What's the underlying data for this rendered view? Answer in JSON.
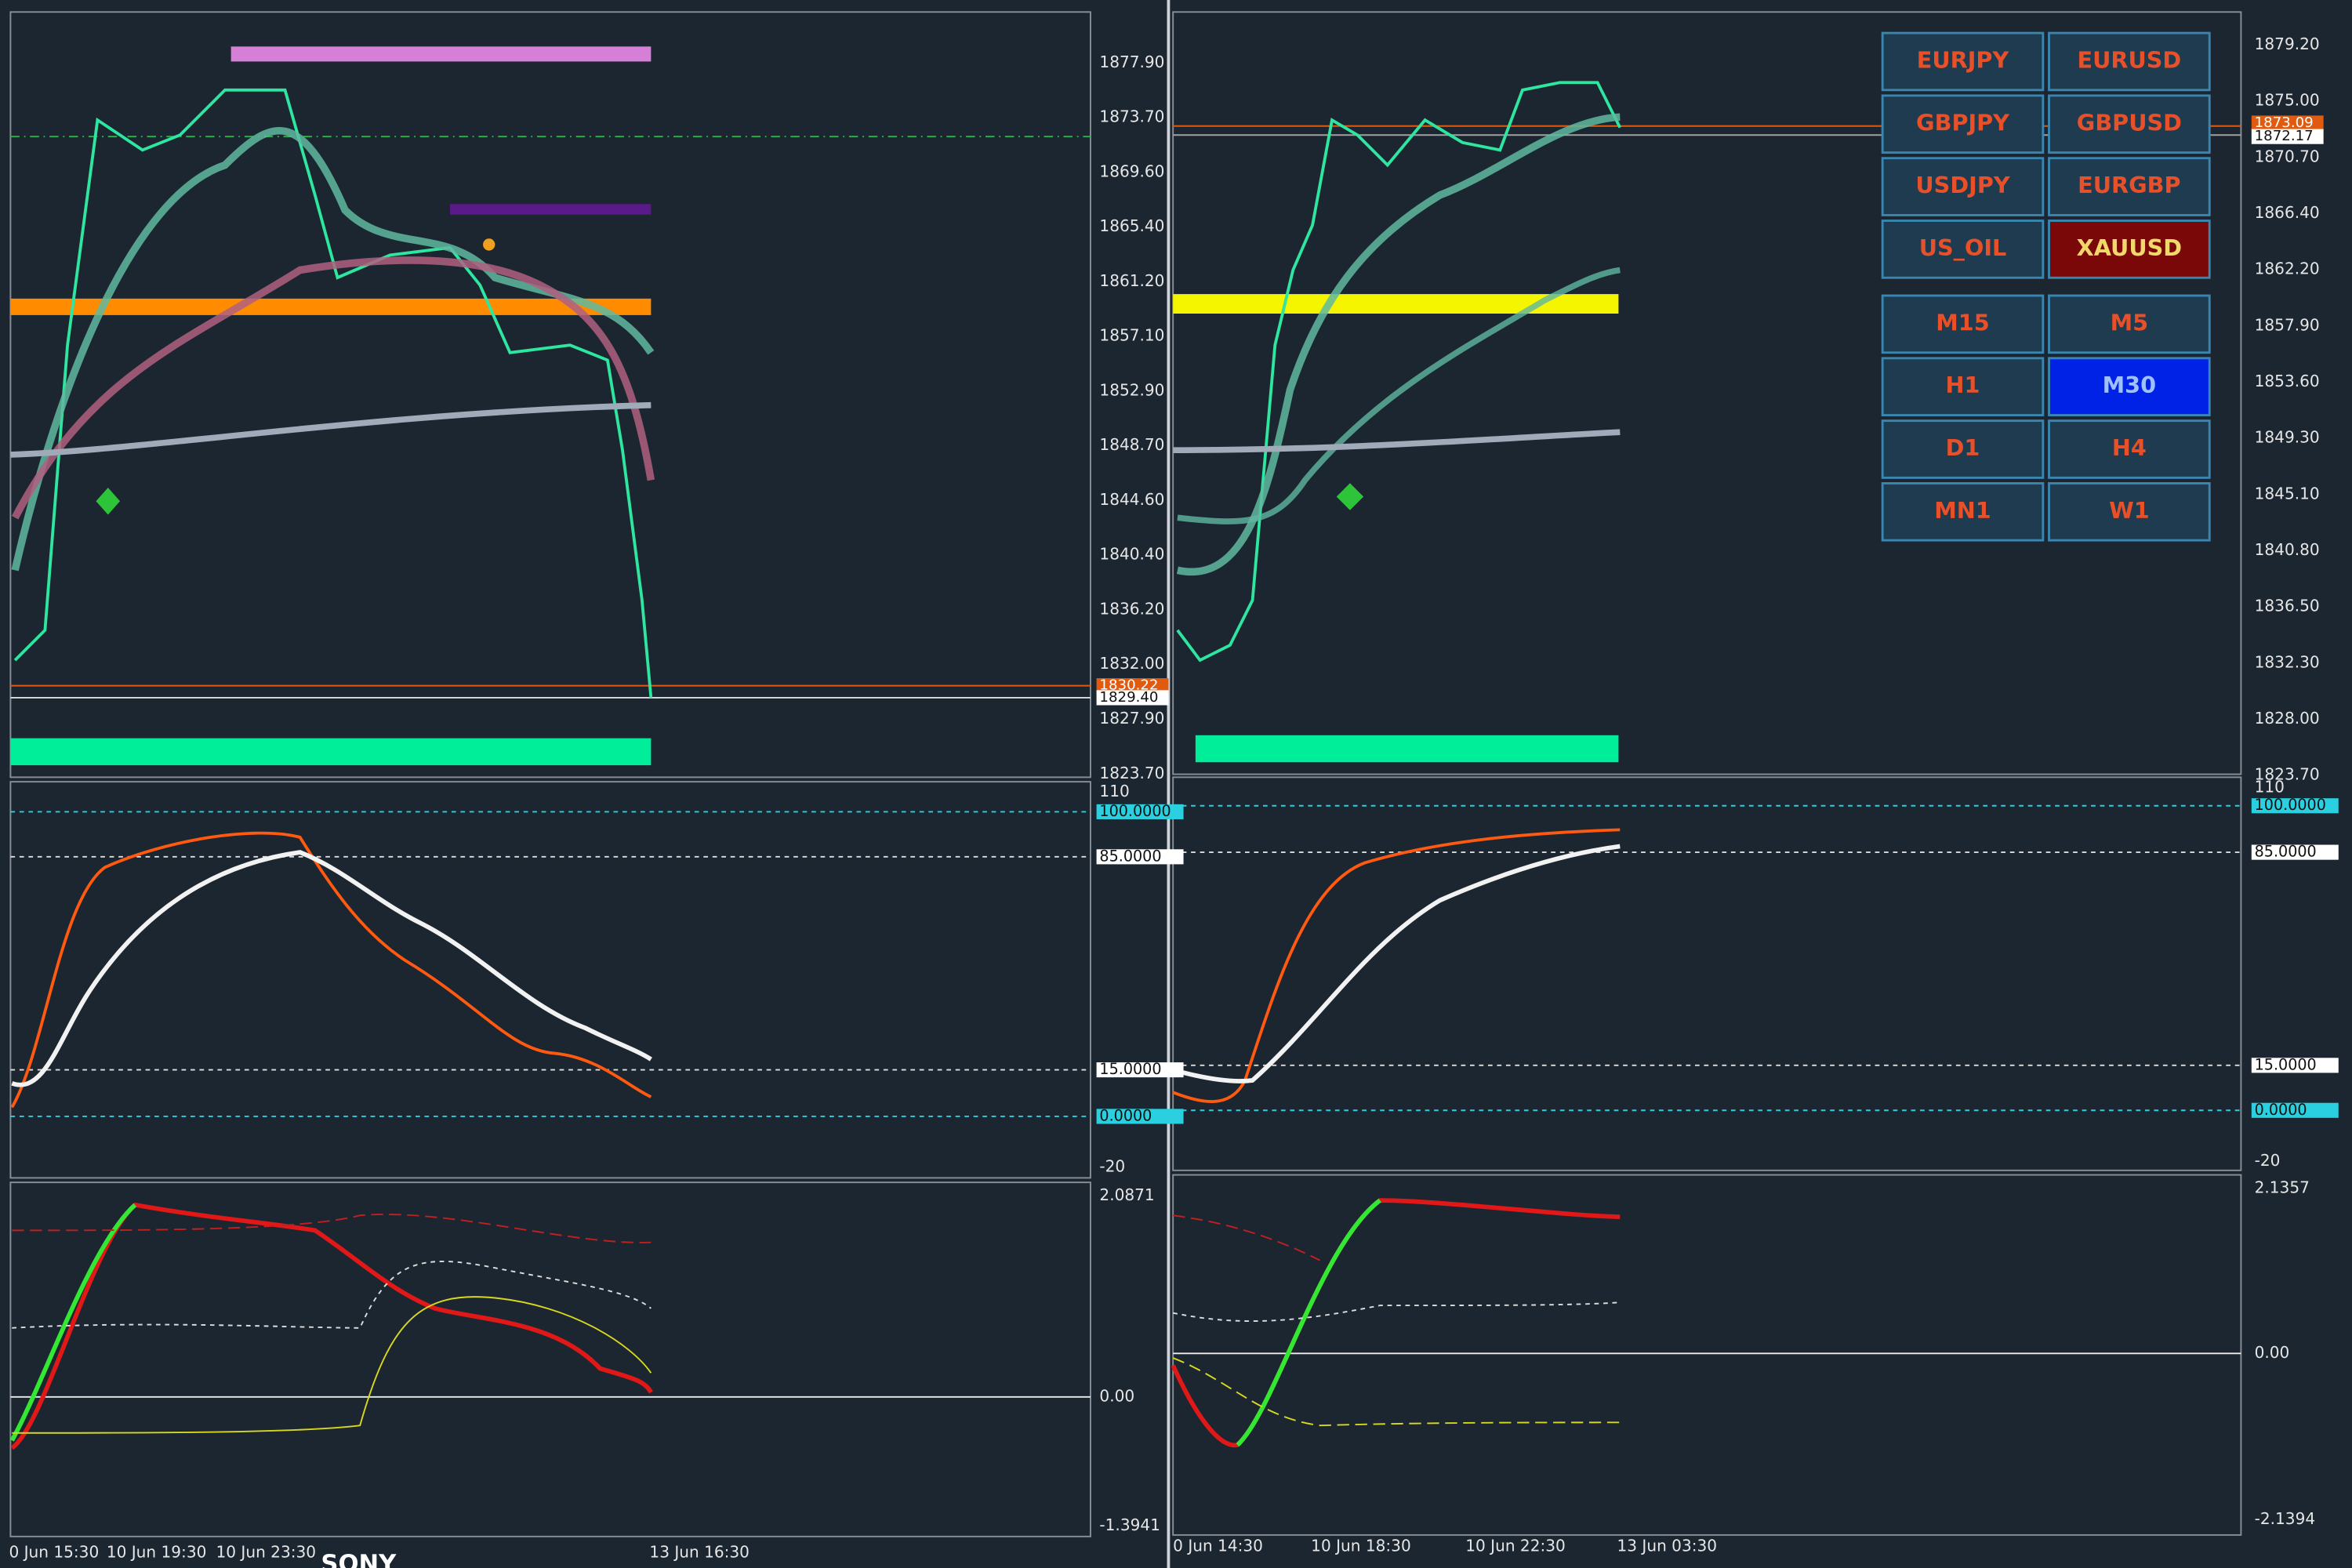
{
  "left": {
    "price_axis": [
      "1877.90",
      "1873.70",
      "1869.60",
      "1865.40",
      "1861.20",
      "1857.10",
      "1852.90",
      "1848.70",
      "1844.60",
      "1840.40",
      "1836.20",
      "1832.00",
      "1827.90",
      "1823.70"
    ],
    "current_prices": [
      "1830.22",
      "1829.40"
    ],
    "oscillator_axis": [
      "110",
      "100.0000",
      "85.0000",
      "15.0000",
      "0.0000",
      "-20"
    ],
    "macd_axis": [
      "2.0871",
      "0.00",
      "-1.3941"
    ],
    "time_axis": [
      "0 Jun 15:30",
      "10 Jun 19:30",
      "10 Jun 23:30",
      "13 Jun 16:30"
    ]
  },
  "right": {
    "price_axis": [
      "1879.20",
      "1875.00",
      "1870.70",
      "1866.40",
      "1862.20",
      "1857.90",
      "1853.60",
      "1849.30",
      "1845.10",
      "1840.80",
      "1836.50",
      "1832.30",
      "1828.00",
      "1823.70"
    ],
    "current_prices": [
      "1873.09",
      "1872.17"
    ],
    "oscillator_axis": [
      "110",
      "100.0000",
      "85.0000",
      "15.0000",
      "0.0000",
      "-20"
    ],
    "macd_axis": [
      "2.1357",
      "0.00",
      "-2.1394"
    ],
    "time_axis": [
      "0 Jun 14:30",
      "10 Jun 18:30",
      "10 Jun 22:30",
      "13 Jun 03:30"
    ]
  },
  "symbols": [
    "EURJPY",
    "EURUSD",
    "GBPJPY",
    "GBPUSD",
    "USDJPY",
    "EURGBP",
    "US_OIL",
    "XAUUSD"
  ],
  "timeframes": [
    "M15",
    "M5",
    "H1",
    "M30",
    "D1",
    "H4",
    "MN1",
    "W1"
  ],
  "overlay": "SONY"
}
